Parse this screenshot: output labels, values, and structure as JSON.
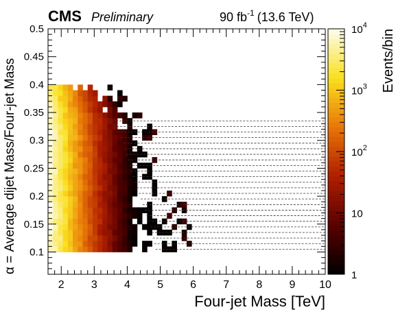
{
  "header": {
    "experiment": "CMS",
    "status": "Preliminary",
    "lumi": "90 fb",
    "lumi_exp": "-1",
    "energy": "(13.6 TeV)"
  },
  "chart_data": {
    "type": "heatmap",
    "title": "",
    "xlabel": "Four-jet Mass [TeV]",
    "ylabel": "α = Average dijet Mass/Four-jet Mass",
    "zlabel": "Events/bin",
    "xlim": [
      1.6,
      10
    ],
    "ylim": [
      0.06,
      0.5
    ],
    "zlim": [
      1,
      10000
    ],
    "zscale": "log",
    "x_ticks": [
      2,
      3,
      4,
      5,
      6,
      7,
      8,
      9,
      10
    ],
    "x_tick_labels": [
      "2",
      "3",
      "4",
      "5",
      "6",
      "7",
      "8",
      "9",
      "10"
    ],
    "y_ticks": [
      0.1,
      0.15,
      0.2,
      0.25,
      0.3,
      0.35,
      0.4,
      0.45,
      0.5
    ],
    "y_tick_labels": [
      "0.1",
      "0.15",
      "0.2",
      "0.25",
      "0.3",
      "0.35",
      "0.4",
      "0.45",
      "0.5"
    ],
    "z_ticks": [
      1,
      10,
      100,
      1000,
      10000
    ],
    "z_tick_labels": [
      {
        "base": "1",
        "exp": ""
      },
      {
        "base": "10",
        "exp": ""
      },
      {
        "base": "10",
        "exp": "2"
      },
      {
        "base": "10",
        "exp": "3"
      },
      {
        "base": "10",
        "exp": "4"
      }
    ],
    "bin_width_x": 0.15,
    "bin_width_y": 0.01,
    "alpha_bin_lines": [
      0.105,
      0.115,
      0.125,
      0.135,
      0.145,
      0.155,
      0.165,
      0.175,
      0.185,
      0.195,
      0.205,
      0.215,
      0.225,
      0.235,
      0.245,
      0.255,
      0.265,
      0.275,
      0.285,
      0.295,
      0.305,
      0.315,
      0.325,
      0.335
    ],
    "alpha_line_x_range": [
      1.6,
      10
    ],
    "population": {
      "alpha_min": 0.1,
      "alpha_max": 0.4,
      "start_x": 1.6,
      "peak_events": 10000,
      "log_slope_per_TeV": 1.5,
      "edge_x": [
        [
          0.1,
          5.5
        ],
        [
          0.15,
          5.3
        ],
        [
          0.2,
          5.0
        ],
        [
          0.25,
          4.7
        ],
        [
          0.3,
          4.5
        ],
        [
          0.35,
          3.9
        ],
        [
          0.4,
          2.8
        ]
      ]
    }
  }
}
